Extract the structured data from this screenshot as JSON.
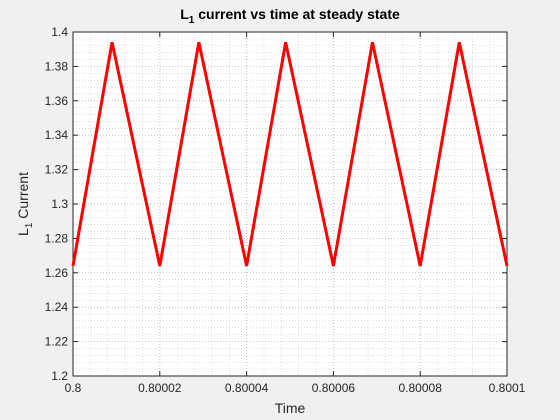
{
  "chart_data": {
    "type": "line",
    "title": {
      "main": "L",
      "sub": "1",
      "rest": " current vs time at steady state"
    },
    "xlabel": "Time",
    "ylabel": {
      "main": "L",
      "sub": "1",
      "rest": "  Current"
    },
    "xlim": [
      0.8,
      0.8001
    ],
    "ylim": [
      1.2,
      1.4
    ],
    "xticks": [
      0.8,
      0.80002,
      0.80004,
      0.80006,
      0.80008,
      0.8001
    ],
    "xtick_labels": [
      "0.8",
      "0.80002",
      "0.80004",
      "0.80006",
      "0.80008",
      "0.8001"
    ],
    "yticks": [
      1.2,
      1.22,
      1.24,
      1.26,
      1.28,
      1.3,
      1.32,
      1.34,
      1.36,
      1.38,
      1.4
    ],
    "ytick_labels": [
      "1.2",
      "1.22",
      "1.24",
      "1.26",
      "1.28",
      "1.3",
      "1.32",
      "1.34",
      "1.36",
      "1.38",
      "1.4"
    ],
    "grid": true,
    "minor_grid": true,
    "colors": {
      "series": "#ff0000",
      "background": "#ffffff",
      "figure": "#f0f0f0",
      "grid": "#c8c8c8"
    },
    "series": [
      {
        "x": [
          0.8,
          0.800009,
          0.80002,
          0.800029,
          0.80004,
          0.800049,
          0.80006,
          0.800069,
          0.80008,
          0.800089,
          0.8001
        ],
        "y": [
          1.264,
          1.394,
          1.264,
          1.394,
          1.264,
          1.394,
          1.264,
          1.394,
          1.264,
          1.394,
          1.264
        ]
      }
    ]
  }
}
